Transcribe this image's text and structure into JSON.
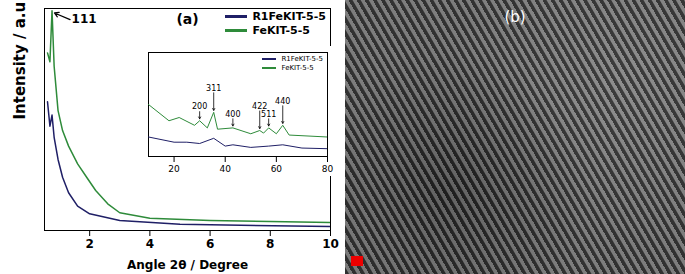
{
  "chart_data": [
    {
      "type": "line",
      "title": "(a)",
      "x_label": "Angle 2θ / Degree",
      "y_label": "Intensity / a.u",
      "xlim": [
        0.5,
        10
      ],
      "xticks": [
        2,
        4,
        6,
        8,
        10
      ],
      "ylim": [
        0,
        100
      ],
      "tick_labels": "x",
      "legend": "top-right",
      "series": [
        {
          "name": "R1FeKIT-5-5",
          "color": "#1f1f66",
          "x": [
            0.6,
            0.68,
            0.75,
            0.82,
            0.95,
            1.1,
            1.3,
            1.6,
            2,
            3,
            5,
            10
          ],
          "values": [
            58,
            47,
            52,
            42,
            32,
            24,
            17,
            11,
            7.5,
            4.5,
            2.8,
            1.8
          ]
        },
        {
          "name": "FeKIT-5-5",
          "color": "#2e8b3a",
          "x": [
            0.6,
            0.68,
            0.75,
            0.82,
            0.95,
            1.1,
            1.3,
            1.6,
            1.9,
            2.2,
            2.6,
            3,
            4,
            6,
            8,
            10
          ],
          "values": [
            80,
            76,
            99,
            74,
            54,
            45,
            38,
            30,
            24,
            18,
            12,
            8,
            5.5,
            4.5,
            4,
            3.6
          ]
        }
      ],
      "annotations": [
        {
          "text": "111",
          "x": 0.75,
          "y": 99
        }
      ]
    },
    {
      "type": "line",
      "xlim": [
        10,
        80
      ],
      "xticks": [
        20,
        40,
        60,
        80
      ],
      "ylim": [
        0,
        160
      ],
      "tick_labels": "x",
      "legend": "top-right",
      "series": [
        {
          "name": "R1FeKIT-5-5",
          "color": "#1f1f66",
          "x": [
            10,
            20,
            25,
            30,
            35.5,
            40,
            43,
            50,
            57,
            62.5,
            70,
            80
          ],
          "values": [
            30,
            22,
            22,
            20,
            28,
            16,
            18,
            14,
            16,
            18,
            13,
            12
          ]
        },
        {
          "name": "FeKIT-5-5",
          "color": "#2e8b3a",
          "x": [
            10,
            18,
            22,
            28,
            30,
            33,
            35.5,
            37,
            43,
            50,
            53.5,
            55,
            57,
            60,
            62.5,
            65,
            80
          ],
          "values": [
            80,
            55,
            60,
            48,
            55,
            44,
            68,
            42,
            44,
            35,
            40,
            36,
            44,
            35,
            48,
            33,
            30
          ]
        }
      ],
      "annotations": [
        {
          "text": "200",
          "x": 30,
          "y": 55
        },
        {
          "text": "311",
          "x": 35.5,
          "y": 68
        },
        {
          "text": "400",
          "x": 43,
          "y": 44
        },
        {
          "text": "422",
          "x": 53.5,
          "y": 40
        },
        {
          "text": "511",
          "x": 57,
          "y": 44
        },
        {
          "text": "440",
          "x": 62.5,
          "y": 48
        }
      ]
    }
  ],
  "image": {
    "label": "(b)"
  }
}
